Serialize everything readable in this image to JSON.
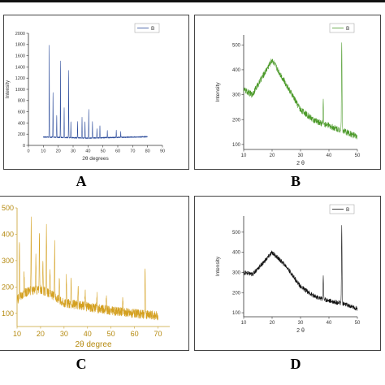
{
  "panel_letters": {
    "a": "A",
    "b": "B",
    "c": "C",
    "d": "D"
  },
  "chart_data": [
    {
      "id": "A",
      "type": "line",
      "xlabel": "2θ degrees",
      "ylabel": "Intensity",
      "xlim": [
        0,
        90
      ],
      "ylim": [
        0,
        2000
      ],
      "xticks": [
        0,
        10,
        20,
        30,
        40,
        50,
        60,
        70,
        80,
        90
      ],
      "yticks": [
        0,
        200,
        400,
        600,
        800,
        1000,
        1200,
        1400,
        1600,
        1800,
        2000
      ],
      "grid": false,
      "legend": {
        "position": "top-right",
        "entries": [
          "B"
        ]
      },
      "color": "#2a4a9a",
      "x_range": [
        10,
        80
      ],
      "baseline": [
        [
          10,
          150
        ],
        [
          40,
          130
        ],
        [
          80,
          155
        ]
      ],
      "noise": 20,
      "series": [
        {
          "name": "B",
          "peaks": [
            [
              14,
              1780
            ],
            [
              16.5,
              950
            ],
            [
              19,
              540
            ],
            [
              21.5,
              1500
            ],
            [
              24,
              680
            ],
            [
              27,
              1340
            ],
            [
              28.5,
              430
            ],
            [
              33,
              420
            ],
            [
              36,
              500
            ],
            [
              38,
              430
            ],
            [
              40.5,
              640
            ],
            [
              43,
              420
            ],
            [
              46,
              300
            ],
            [
              48,
              360
            ],
            [
              53,
              260
            ],
            [
              59,
              270
            ],
            [
              62,
              240
            ]
          ]
        }
      ]
    },
    {
      "id": "B",
      "type": "line",
      "xlabel": "2 θ",
      "ylabel": "Intensity",
      "xlim": [
        10,
        50
      ],
      "ylim": [
        80,
        540
      ],
      "xticks": [
        10,
        20,
        30,
        40,
        50
      ],
      "yticks": [
        100,
        200,
        300,
        400,
        500
      ],
      "grid": false,
      "legend": {
        "position": "top-right",
        "entries": [
          "B"
        ]
      },
      "color": "#4c9a2a",
      "x_range": [
        10,
        50
      ],
      "baseline": [
        [
          10,
          320
        ],
        [
          13,
          300
        ],
        [
          17,
          380
        ],
        [
          20,
          440
        ],
        [
          25,
          340
        ],
        [
          30,
          240
        ],
        [
          35,
          195
        ],
        [
          40,
          175
        ],
        [
          45,
          155
        ],
        [
          50,
          130
        ]
      ],
      "noise": 25,
      "series": [
        {
          "name": "B",
          "peaks": [
            [
              38,
              280
            ],
            [
              44.5,
              520
            ]
          ]
        }
      ]
    },
    {
      "id": "C",
      "type": "line",
      "xlabel": "2θ degree",
      "ylabel": "",
      "xlim": [
        10,
        75
      ],
      "ylim": [
        50,
        500
      ],
      "xticks": [
        10,
        20,
        30,
        40,
        50,
        60,
        70
      ],
      "yticks": [
        100,
        200,
        300,
        400,
        500
      ],
      "grid": false,
      "legend": null,
      "color": "#d4a020",
      "x_range": [
        10,
        70
      ],
      "baseline": [
        [
          10,
          150
        ],
        [
          12,
          170
        ],
        [
          15,
          185
        ],
        [
          20,
          190
        ],
        [
          25,
          170
        ],
        [
          30,
          140
        ],
        [
          40,
          125
        ],
        [
          50,
          110
        ],
        [
          60,
          100
        ],
        [
          70,
          90
        ]
      ],
      "noise": 35,
      "series": [
        {
          "name": "",
          "peaks": [
            [
              11,
              380
            ],
            [
              13,
              260
            ],
            [
              16,
              460
            ],
            [
              18,
              320
            ],
            [
              19.5,
              420
            ],
            [
              21,
              310
            ],
            [
              22.5,
              430
            ],
            [
              24,
              270
            ],
            [
              26,
              360
            ],
            [
              28,
              240
            ],
            [
              31,
              250
            ],
            [
              33,
              220
            ],
            [
              36,
              205
            ],
            [
              39,
              190
            ],
            [
              44,
              175
            ],
            [
              48,
              160
            ],
            [
              55,
              150
            ],
            [
              64.5,
              280
            ]
          ]
        }
      ]
    },
    {
      "id": "D",
      "type": "line",
      "xlabel": "2 θ",
      "ylabel": "Intensity",
      "xlim": [
        10,
        50
      ],
      "ylim": [
        80,
        580
      ],
      "xticks": [
        10,
        20,
        30,
        40,
        50
      ],
      "yticks": [
        100,
        200,
        300,
        400,
        500
      ],
      "grid": false,
      "legend": {
        "position": "top-right",
        "entries": [
          "B"
        ]
      },
      "color": "#111111",
      "x_range": [
        10,
        50
      ],
      "baseline": [
        [
          10,
          300
        ],
        [
          13,
          290
        ],
        [
          17,
          350
        ],
        [
          20,
          400
        ],
        [
          25,
          330
        ],
        [
          30,
          230
        ],
        [
          35,
          180
        ],
        [
          40,
          160
        ],
        [
          45,
          145
        ],
        [
          50,
          120
        ]
      ],
      "noise": 22,
      "series": [
        {
          "name": "B",
          "peaks": [
            [
              38,
              280
            ],
            [
              44.5,
              530
            ]
          ]
        }
      ]
    }
  ]
}
